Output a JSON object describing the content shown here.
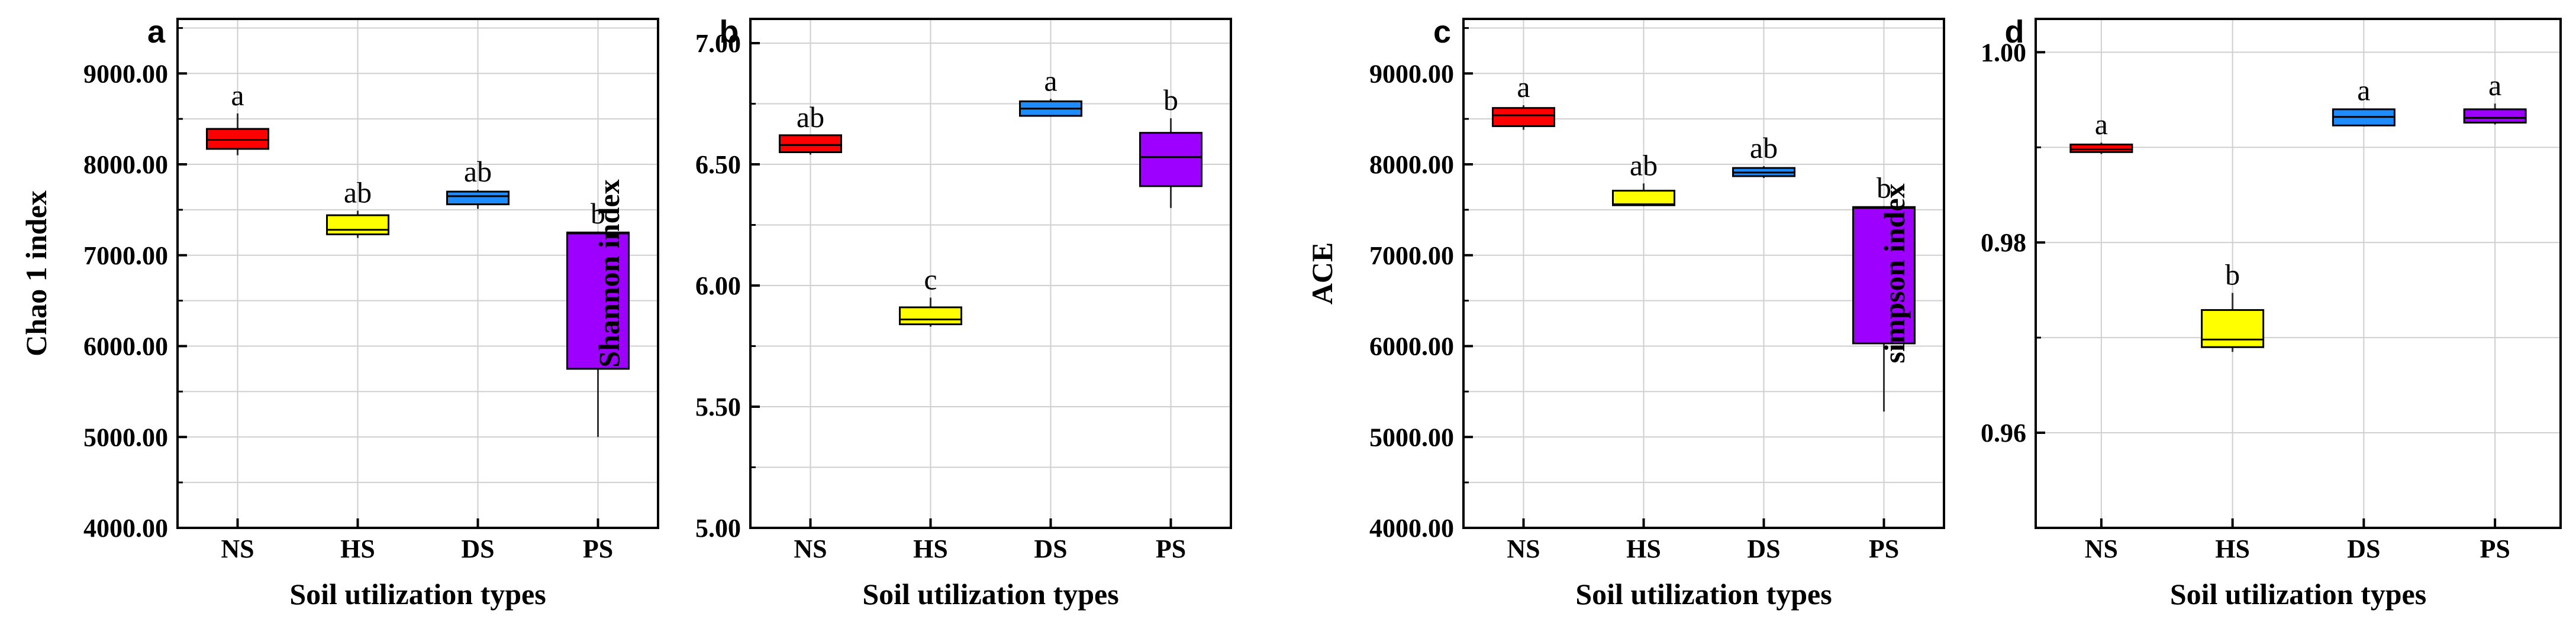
{
  "figure_title": "",
  "chart_data": [
    {
      "type": "box",
      "panel_label": "a",
      "title": "",
      "xlabel": "Soil utilization types",
      "ylabel": "Chao 1 index",
      "ylim": [
        4000,
        9600
      ],
      "yticks": [
        4000,
        5000,
        6000,
        7000,
        8000,
        9000
      ],
      "ytick_labels": [
        "4000.00",
        "5000.00",
        "6000.00",
        "7000.00",
        "8000.00",
        "9000.00"
      ],
      "categories": [
        "NS",
        "HS",
        "DS",
        "PS"
      ],
      "colors": [
        "#ff0000",
        "#ffff00",
        "#1e8cff",
        "#9d00ff"
      ],
      "boxes": [
        {
          "min": 8100,
          "q1": 8170,
          "median": 8270,
          "q3": 8390,
          "max": 8560
        },
        {
          "min": 7190,
          "q1": 7230,
          "median": 7280,
          "q3": 7440,
          "max": 7490
        },
        {
          "min": 7510,
          "q1": 7560,
          "median": 7650,
          "q3": 7700,
          "max": 7720
        },
        {
          "min": 5000,
          "q1": 5750,
          "median": 7240,
          "q3": 7250,
          "max": 7260
        }
      ],
      "significance": [
        "a",
        "ab",
        "ab",
        "b"
      ]
    },
    {
      "type": "box",
      "panel_label": "b",
      "title": "",
      "xlabel": "Soil utilization types",
      "ylabel": "Shannon index",
      "ylim": [
        5.0,
        7.1
      ],
      "yticks": [
        5.0,
        5.5,
        6.0,
        6.5,
        7.0
      ],
      "ytick_labels": [
        "5.00",
        "5.50",
        "6.00",
        "6.50",
        "7.00"
      ],
      "categories": [
        "NS",
        "HS",
        "DS",
        "PS"
      ],
      "colors": [
        "#ff0000",
        "#ffff00",
        "#1e8cff",
        "#9d00ff"
      ],
      "boxes": [
        {
          "min": 6.54,
          "q1": 6.55,
          "median": 6.58,
          "q3": 6.62,
          "max": 6.62
        },
        {
          "min": 5.83,
          "q1": 5.84,
          "median": 5.86,
          "q3": 5.91,
          "max": 5.95
        },
        {
          "min": 6.7,
          "q1": 6.7,
          "median": 6.73,
          "q3": 6.76,
          "max": 6.77
        },
        {
          "min": 6.32,
          "q1": 6.41,
          "median": 6.53,
          "q3": 6.63,
          "max": 6.69
        }
      ],
      "significance": [
        "ab",
        "c",
        "a",
        "b"
      ]
    },
    {
      "type": "box",
      "panel_label": "c",
      "title": "",
      "xlabel": "Soil utilization types",
      "ylabel": "ACE",
      "ylim": [
        4000,
        9600
      ],
      "yticks": [
        4000,
        5000,
        6000,
        7000,
        8000,
        9000
      ],
      "ytick_labels": [
        "4000.00",
        "5000.00",
        "6000.00",
        "7000.00",
        "8000.00",
        "9000.00"
      ],
      "categories": [
        "NS",
        "HS",
        "DS",
        "PS"
      ],
      "colors": [
        "#ff0000",
        "#ffff00",
        "#1e8cff",
        "#9d00ff"
      ],
      "boxes": [
        {
          "min": 8380,
          "q1": 8420,
          "median": 8540,
          "q3": 8620,
          "max": 8650
        },
        {
          "min": 7540,
          "q1": 7550,
          "median": 7560,
          "q3": 7710,
          "max": 7790
        },
        {
          "min": 7850,
          "q1": 7870,
          "median": 7910,
          "q3": 7960,
          "max": 7980
        },
        {
          "min": 5280,
          "q1": 6030,
          "median": 7520,
          "q3": 7530,
          "max": 7540
        }
      ],
      "significance": [
        "a",
        "ab",
        "ab",
        "b"
      ]
    },
    {
      "type": "box",
      "panel_label": "d",
      "title": "",
      "xlabel": "Soil utilization types",
      "ylabel": "simpson index",
      "ylim": [
        0.95,
        1.0035
      ],
      "yticks": [
        0.96,
        0.98,
        1.0
      ],
      "ytick_labels": [
        "0.96",
        "0.98",
        "1.00"
      ],
      "categories": [
        "NS",
        "HS",
        "DS",
        "PS"
      ],
      "colors": [
        "#ff0000",
        "#ffff00",
        "#1e8cff",
        "#9d00ff"
      ],
      "boxes": [
        {
          "min": 0.9893,
          "q1": 0.9895,
          "median": 0.9898,
          "q3": 0.9903,
          "max": 0.9905
        },
        {
          "min": 0.9685,
          "q1": 0.969,
          "median": 0.9698,
          "q3": 0.9729,
          "max": 0.9747
        },
        {
          "min": 0.9922,
          "q1": 0.9923,
          "median": 0.9932,
          "q3": 0.994,
          "max": 0.9941
        },
        {
          "min": 0.9924,
          "q1": 0.9926,
          "median": 0.9931,
          "q3": 0.994,
          "max": 0.9946
        }
      ],
      "significance": [
        "a",
        "b",
        "a",
        "a"
      ]
    }
  ]
}
